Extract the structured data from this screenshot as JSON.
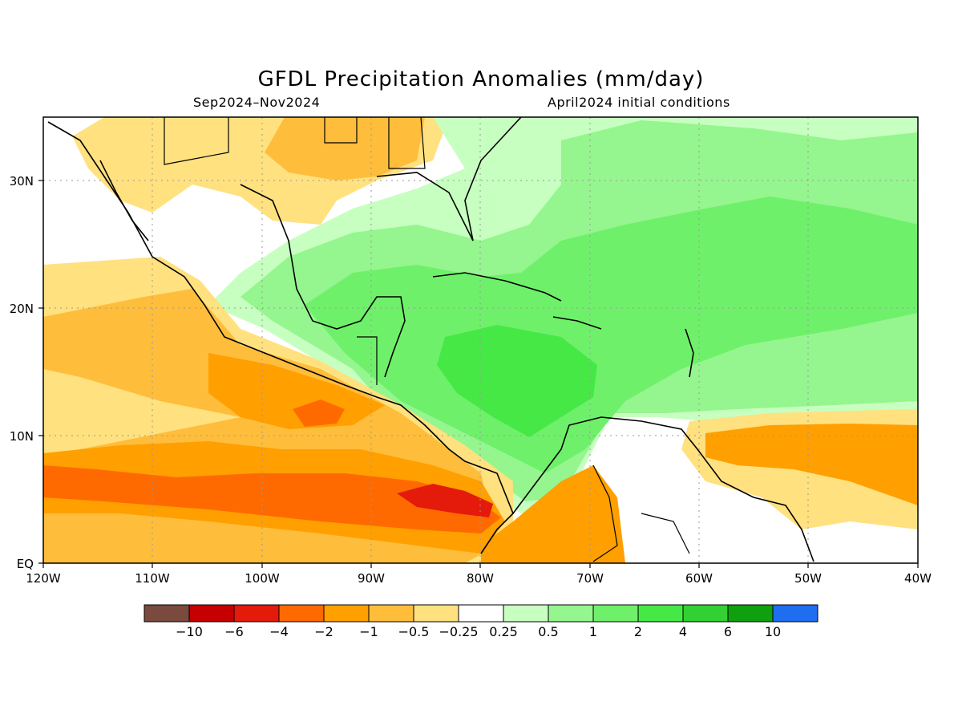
{
  "title": "GFDL Precipitation Anomalies (mm/day)",
  "period": "Sep2024–Nov2024",
  "init": "April2024 initial conditions",
  "map": {
    "lon_range": [
      -120,
      -40
    ],
    "lat_range": [
      0,
      35
    ],
    "x_ticks": [
      "120W",
      "110W",
      "100W",
      "90W",
      "80W",
      "70W",
      "60W",
      "50W",
      "40W"
    ],
    "y_ticks": [
      "EQ",
      "10N",
      "20N",
      "30N"
    ],
    "grid": true,
    "colors": {
      "dry_strong": "#e41a0b",
      "dry": "#ff6a00",
      "dry_moderate": "#ff9f00",
      "dry_weak": "#ffbd3c",
      "dry_slight": "#ffe17f",
      "wet_slight": "#c7ffc0",
      "wet_weak": "#95f58e",
      "wet_moderate": "#6ff06a",
      "wet": "#46e846"
    }
  },
  "colorbar": {
    "colors": [
      "#7a4a3f",
      "#c60000",
      "#e41a0b",
      "#ff6a00",
      "#ff9f00",
      "#ffbd3c",
      "#ffe17f",
      "#ffffff",
      "#c7ffc0",
      "#95f58e",
      "#6ff06a",
      "#46e846",
      "#32d032",
      "#0fa00f",
      "#1f6ef0"
    ],
    "labels": [
      "−10",
      "−6",
      "−4",
      "−2",
      "−1",
      "−0.5",
      "−0.25",
      "0.25",
      "0.5",
      "1",
      "2",
      "4",
      "6",
      "10"
    ]
  }
}
